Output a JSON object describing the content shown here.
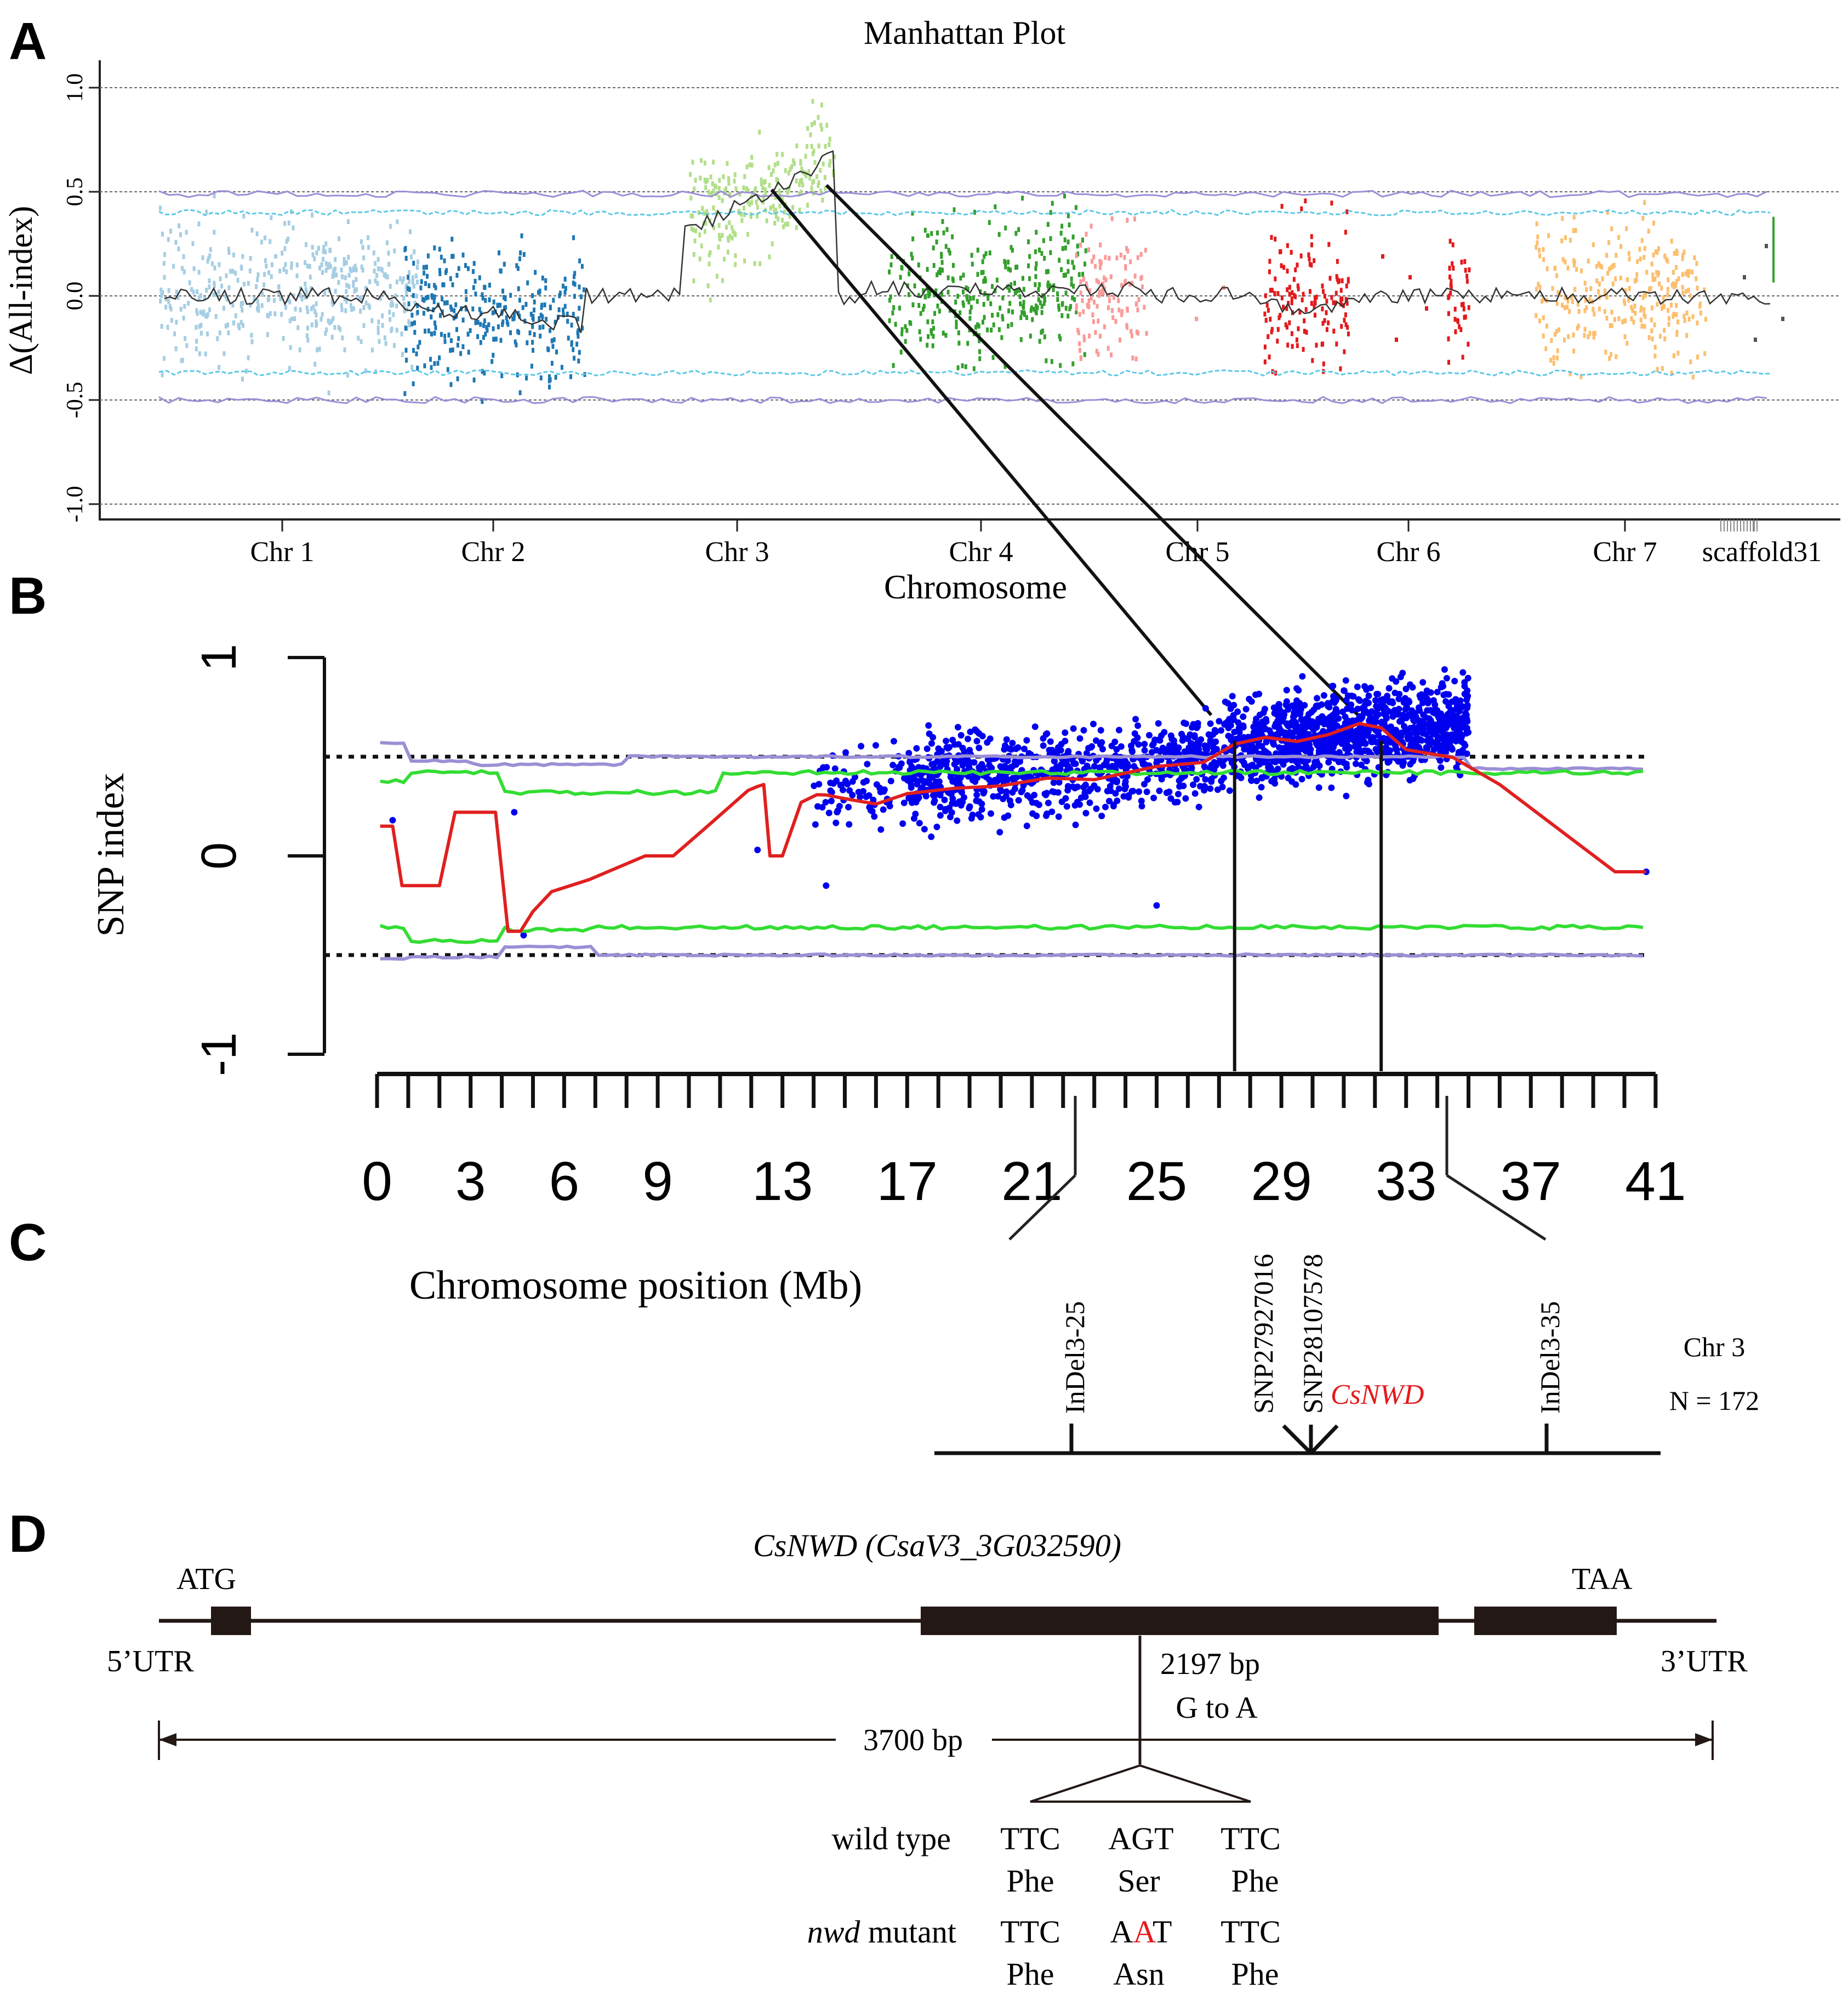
{
  "panel_labels": {
    "a": "A",
    "b": "B",
    "c": "C",
    "d": "D"
  },
  "chart_data": [
    {
      "type": "scatter",
      "title": "Manhattan Plot",
      "xlabel": "Chromosome",
      "ylabel": "Δ(All-index)",
      "ylim": [
        -1.0,
        1.0
      ],
      "yticks": [
        "1.0",
        "0.5",
        "0.0",
        "-0.5",
        "-1.0"
      ],
      "categories": [
        "Chr 1",
        "Chr 2",
        "Chr 3",
        "Chr 4",
        "Chr 5",
        "Chr 6",
        "Chr 7",
        "scaffold31"
      ],
      "reference_lines": [
        1.0,
        0.5,
        0.0,
        -0.5,
        -1.0
      ],
      "series_colors": {
        "Chr 1": "#a6cee3",
        "Chr 2": "#1f78b4",
        "Chr 3": "#b2df8a",
        "Chr 4": "#33a02c",
        "Chr 5": "#fb9a99",
        "Chr 6": "#e31a1c",
        "Chr 7": "#fdbf6f",
        "scaffold31": "#555555"
      },
      "threshold_colors": {
        "ci95": "#5bc8e6",
        "ci99": "#9b8fd6",
        "sliding_mean": "#333333"
      }
    },
    {
      "type": "scatter",
      "xlabel": "Chromosome position (Mb)",
      "ylabel": "SNP index",
      "ylim": [
        -1,
        1
      ],
      "yticks": [
        "1",
        "0",
        "-1"
      ],
      "xlim": [
        0,
        41
      ],
      "xticks": [
        "0",
        "3",
        "6",
        "9",
        "13",
        "17",
        "21",
        "25",
        "29",
        "33",
        "37",
        "41"
      ],
      "reference_lines": [
        0.5,
        -0.5
      ],
      "highlight_interval_mb": [
        27.5,
        32.2
      ],
      "sliding_index": {
        "x": [
          0.1,
          0.5,
          0.8,
          2.0,
          2.5,
          3.8,
          4.2,
          4.6,
          5.0,
          5.6,
          6.8,
          8.6,
          9.5,
          10.6,
          11.9,
          12.2,
          12.4,
          12.6,
          13.0,
          13.6,
          14.1,
          14.4,
          15.0,
          16.0,
          17.0,
          18.5,
          20.0,
          21.5,
          23.0,
          25.0,
          26.5,
          27.5,
          28.5,
          29.5,
          30.5,
          31.5,
          32.2,
          33.0,
          34.5,
          36.0,
          39.7,
          40.7
        ],
        "y": [
          0.15,
          0.15,
          -0.15,
          -0.15,
          0.22,
          0.22,
          -0.38,
          -0.38,
          -0.28,
          -0.18,
          -0.12,
          0.0,
          0.0,
          0.15,
          0.33,
          0.35,
          0.36,
          0.0,
          0.0,
          0.27,
          0.32,
          0.32,
          0.3,
          0.28,
          0.33,
          0.35,
          0.37,
          0.4,
          0.4,
          0.44,
          0.48,
          0.57,
          0.58,
          0.58,
          0.63,
          0.65,
          0.65,
          0.52,
          0.5,
          0.36,
          -0.08,
          -0.08
        ]
      },
      "ci95": {
        "upper": 0.42,
        "lower": -0.34
      },
      "ci99": {
        "upper": 0.48,
        "lower": -0.52
      },
      "colors": {
        "points": "#0000ee",
        "index": "#e02020",
        "ci95": "#33dd33",
        "ci99": "#9b8fd6"
      }
    }
  ],
  "map_c": {
    "markers": [
      "InDel3-25",
      "SNP27927016",
      "SNP28107578",
      "InDel3-35"
    ],
    "gene": "CsNWD",
    "chr_label": "Chr 3",
    "n_label": "N =  172"
  },
  "gene_d": {
    "title": "CsNWD (CsaV3_3G032590)",
    "start_codon": "ATG",
    "stop_codon": "TAA",
    "utr5": "5’UTR",
    "utr3": "3’UTR",
    "mutation_pos": "2197 bp",
    "mutation": "G to A",
    "length": "3700 bp",
    "wild_type_label": "wild type",
    "mutant_label_italic": "nwd",
    "mutant_label_rest": " mutant",
    "wt_codons": [
      "TTC",
      "AGT",
      "TTC"
    ],
    "wt_aas": [
      "Phe",
      "Ser",
      "Phe"
    ],
    "mut_codon1": "TTC",
    "mut_codon2_parts": [
      "A",
      "A",
      "T"
    ],
    "mut_codon3": "TTC",
    "mut_aas": [
      "Phe",
      "Asn",
      "Phe"
    ]
  }
}
